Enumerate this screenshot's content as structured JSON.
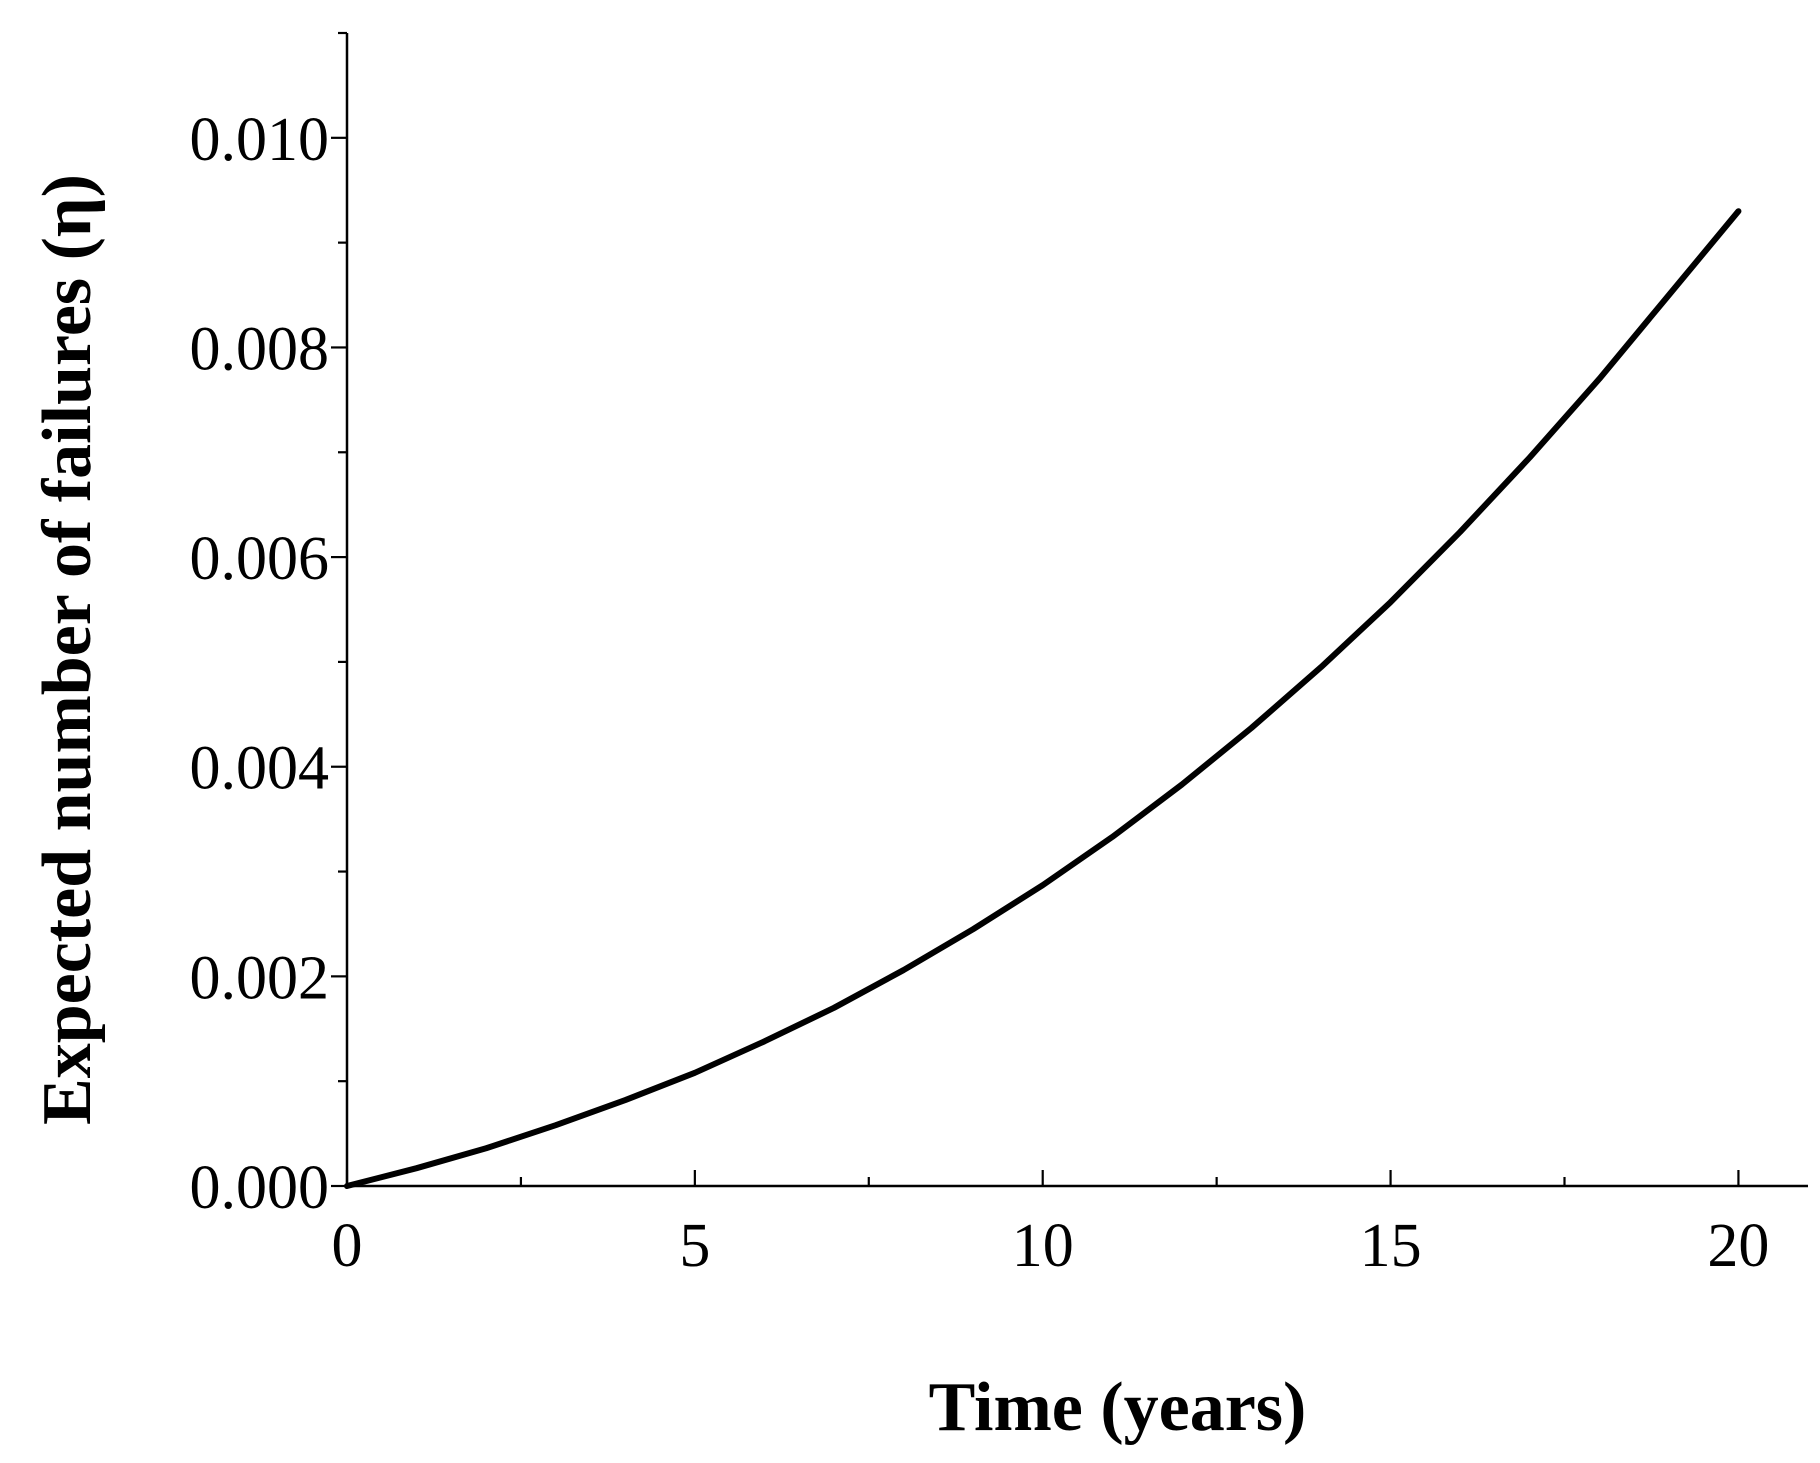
{
  "chart_data": {
    "type": "line",
    "title": "",
    "xlabel": "Time (years)",
    "ylabel": "Expected number of failures (η)",
    "xlim": [
      0,
      21
    ],
    "ylim": [
      0,
      0.011
    ],
    "xticks": [
      0,
      5,
      10,
      15,
      20
    ],
    "xtick_labels": [
      "0",
      "5",
      "10",
      "15",
      "20"
    ],
    "yticks": [
      0,
      0.002,
      0.004,
      0.006,
      0.008,
      0.01
    ],
    "ytick_labels": [
      "0.000",
      "0.002",
      "0.004",
      "0.006",
      "0.008",
      "0.010"
    ],
    "x_minor_step": 2.5,
    "y_minor_step": 0.001,
    "grid": false,
    "line_color": "#000000",
    "series": [
      {
        "x": [
          0,
          1,
          2,
          3,
          4,
          5,
          6,
          7,
          8,
          9,
          10,
          11,
          12,
          13,
          14,
          15,
          16,
          17,
          18,
          19,
          20
        ],
        "values": [
          0,
          0.00017,
          0.00036,
          0.00058,
          0.00082,
          0.00108,
          0.00138,
          0.0017,
          0.00206,
          0.00245,
          0.00287,
          0.00333,
          0.00383,
          0.00437,
          0.00495,
          0.00557,
          0.00624,
          0.00695,
          0.0077,
          0.0085,
          0.0093
        ]
      }
    ]
  }
}
